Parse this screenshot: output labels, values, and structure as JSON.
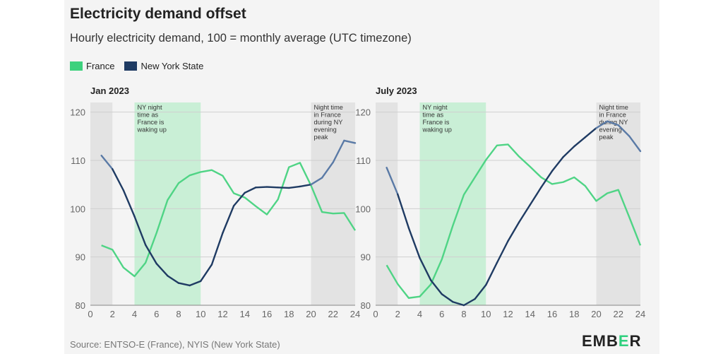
{
  "title": "Electricity demand offset",
  "subtitle": "Hourly electricity demand, 100 = monthly average (UTC timezone)",
  "legend": [
    {
      "label": "France",
      "color": "#3dd17d"
    },
    {
      "label": "New York State",
      "color": "#1f3b63"
    }
  ],
  "source": "Source: ENTSO-E (France), NYIS (New York State)",
  "logo": {
    "text": "EMBER",
    "accent_letter": "E"
  },
  "colors": {
    "france": "#4fd485",
    "ny_dark": "#1f3b63",
    "ny_light": "#5a7aa6",
    "night_band": "#e3e3e3",
    "green_band": "#c9efd6",
    "grid": "#cfcfcf"
  },
  "chart_data": [
    {
      "type": "line",
      "panel_title": "Jan 2023",
      "xlim": [
        0,
        24
      ],
      "ylim": [
        80,
        122
      ],
      "x_ticks": [
        "0",
        "2",
        "4",
        "6",
        "8",
        "10",
        "12",
        "14",
        "16",
        "18",
        "20",
        "22",
        "24"
      ],
      "y_ticks": [
        "80",
        "90",
        "100",
        "110",
        "120"
      ],
      "bands": [
        {
          "from": 0,
          "to": 2,
          "kind": "night"
        },
        {
          "from": 4,
          "to": 10,
          "kind": "green",
          "annotation": [
            "NY night",
            "time as",
            "France is",
            "waking up"
          ]
        },
        {
          "from": 20,
          "to": 24,
          "kind": "night",
          "annotation": [
            "Night time",
            "in France",
            "during NY",
            "evening",
            "peak"
          ]
        }
      ],
      "x": [
        1,
        2,
        3,
        4,
        5,
        6,
        7,
        8,
        9,
        10,
        11,
        12,
        13,
        14,
        15,
        16,
        17,
        18,
        19,
        20,
        21,
        22,
        23,
        24
      ],
      "series": [
        {
          "name": "France",
          "values": [
            92.4,
            91.5,
            87.8,
            86.0,
            88.8,
            95.0,
            101.8,
            105.3,
            106.9,
            107.6,
            108.0,
            106.8,
            103.2,
            102.3,
            100.5,
            98.8,
            101.9,
            108.6,
            109.5,
            104.8,
            99.3,
            99.0,
            99.1,
            95.5
          ]
        },
        {
          "name": "New York State",
          "values": [
            111.0,
            108.2,
            103.8,
            98.4,
            92.5,
            88.6,
            86.1,
            84.6,
            84.1,
            85.0,
            88.4,
            95.0,
            100.6,
            103.3,
            104.4,
            104.5,
            104.4,
            104.3,
            104.6,
            105.0,
            106.4,
            109.6,
            114.1,
            113.6
          ]
        }
      ]
    },
    {
      "type": "line",
      "panel_title": "July 2023",
      "xlim": [
        0,
        24
      ],
      "ylim": [
        80,
        122
      ],
      "x_ticks": [
        "0",
        "2",
        "4",
        "6",
        "8",
        "10",
        "12",
        "14",
        "16",
        "18",
        "20",
        "22",
        "24"
      ],
      "y_ticks": [
        "80",
        "90",
        "100",
        "110",
        "120"
      ],
      "bands": [
        {
          "from": 0,
          "to": 2,
          "kind": "night"
        },
        {
          "from": 4,
          "to": 10,
          "kind": "green",
          "annotation": [
            "NY night",
            "time as",
            "France is",
            "waking up"
          ]
        },
        {
          "from": 20,
          "to": 24,
          "kind": "night",
          "annotation": [
            "Night time",
            "in France",
            "during NY",
            "evening",
            "peak"
          ]
        }
      ],
      "x": [
        1,
        2,
        3,
        4,
        5,
        6,
        7,
        8,
        9,
        10,
        11,
        12,
        13,
        14,
        15,
        16,
        17,
        18,
        19,
        20,
        21,
        22,
        23,
        24
      ],
      "series": [
        {
          "name": "France",
          "values": [
            88.3,
            84.4,
            81.5,
            81.8,
            84.3,
            89.5,
            96.5,
            102.9,
            106.5,
            110.1,
            113.1,
            113.3,
            110.8,
            108.7,
            106.5,
            105.1,
            105.5,
            106.5,
            104.7,
            101.6,
            103.2,
            103.9,
            98.2,
            92.4
          ]
        },
        {
          "name": "New York State",
          "values": [
            108.5,
            103.0,
            96.0,
            89.8,
            85.2,
            82.3,
            80.7,
            80.0,
            81.3,
            84.2,
            88.8,
            93.3,
            97.2,
            100.8,
            104.4,
            107.8,
            110.7,
            112.9,
            114.8,
            116.7,
            118.1,
            117.3,
            115.0,
            111.9
          ]
        }
      ]
    }
  ]
}
